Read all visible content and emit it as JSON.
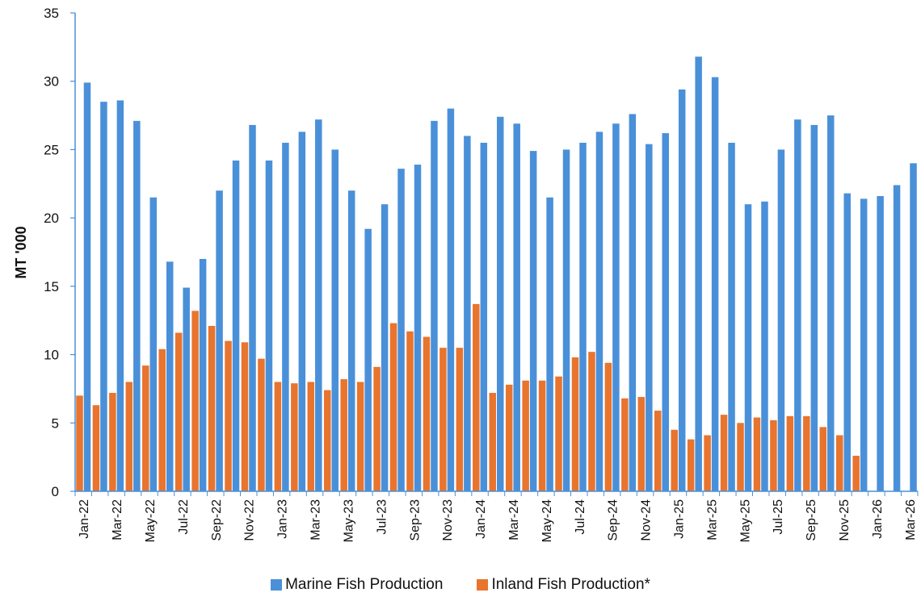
{
  "chart_data": {
    "type": "bar",
    "title": "",
    "xlabel": "",
    "ylabel": "MT '000",
    "ylim": [
      0,
      35
    ],
    "yticks": [
      0,
      5,
      10,
      15,
      20,
      25,
      30,
      35
    ],
    "grid": false,
    "legend_position": "bottom",
    "categories": [
      "Jan-22",
      "Feb-22",
      "Mar-22",
      "Apr-22",
      "May-22",
      "Jun-22",
      "Jul-22",
      "Aug-22",
      "Sep-22",
      "Oct-22",
      "Nov-22",
      "Dec-22",
      "Jan-23",
      "Feb-23",
      "Mar-23",
      "Apr-23",
      "May-23",
      "Jun-23",
      "Jul-23",
      "Aug-23",
      "Sep-23",
      "Oct-23",
      "Nov-23",
      "Dec-23",
      "Jan-24",
      "Feb-24",
      "Mar-24",
      "Apr-24",
      "May-24",
      "Jun-24",
      "Jul-24",
      "Aug-24",
      "Sep-24",
      "Oct-24",
      "Nov-24",
      "Dec-24",
      "Jan-25",
      "Feb-25",
      "Mar-25",
      "Apr-25",
      "May-25",
      "Jun-25",
      "Jul-25",
      "Aug-25",
      "Sep-25",
      "Oct-25",
      "Nov-25",
      "Dec-25",
      "Jan-26",
      "Feb-26",
      "Mar-26"
    ],
    "x_tick_labels": [
      "Jan-22",
      "Mar-22",
      "May-22",
      "Jul-22",
      "Sep-22",
      "Nov-22",
      "Jan-23",
      "Mar-23",
      "May-23",
      "Jul-23",
      "Sep-23",
      "Nov-23",
      "Jan-24",
      "Mar-24",
      "May-24",
      "Jul-24",
      "Sep-24",
      "Nov-24",
      "Jan-25",
      "Mar-25",
      "May-25",
      "Jul-25",
      "Sep-25",
      "Nov-25",
      "Jan-26",
      "Mar-26"
    ],
    "series": [
      {
        "name": "Marine Fish Production",
        "color": "#4A90D9",
        "values": [
          29.9,
          28.5,
          28.6,
          27.1,
          21.5,
          16.8,
          14.9,
          17.0,
          22.0,
          24.2,
          26.8,
          24.2,
          25.5,
          26.3,
          27.2,
          25.0,
          22.0,
          19.2,
          21.0,
          23.6,
          23.9,
          27.1,
          28.0,
          26.0,
          25.5,
          27.4,
          26.9,
          24.9,
          21.5,
          25.0,
          25.5,
          26.3,
          26.9,
          27.6,
          25.4,
          26.2,
          29.4,
          31.8,
          30.3,
          25.5,
          21.0,
          21.2,
          25.0,
          27.2,
          26.8,
          27.5,
          21.8,
          21.4,
          21.6,
          22.4,
          24.0
        ]
      },
      {
        "name": "Inland Fish Production*",
        "color": "#E8742E",
        "values": [
          7.0,
          6.3,
          7.2,
          8.0,
          9.2,
          10.4,
          11.6,
          13.2,
          12.1,
          11.0,
          10.9,
          9.7,
          8.0,
          7.9,
          8.0,
          7.4,
          8.2,
          8.0,
          9.1,
          12.3,
          11.7,
          11.3,
          10.5,
          10.5,
          13.7,
          7.2,
          7.8,
          8.1,
          8.1,
          8.4,
          9.8,
          10.2,
          9.4,
          6.8,
          6.9,
          5.9,
          4.5,
          3.8,
          4.1,
          5.6,
          5.0,
          5.4,
          5.2,
          5.5,
          5.5,
          4.7,
          4.1,
          2.6,
          null,
          null,
          null
        ]
      }
    ]
  }
}
